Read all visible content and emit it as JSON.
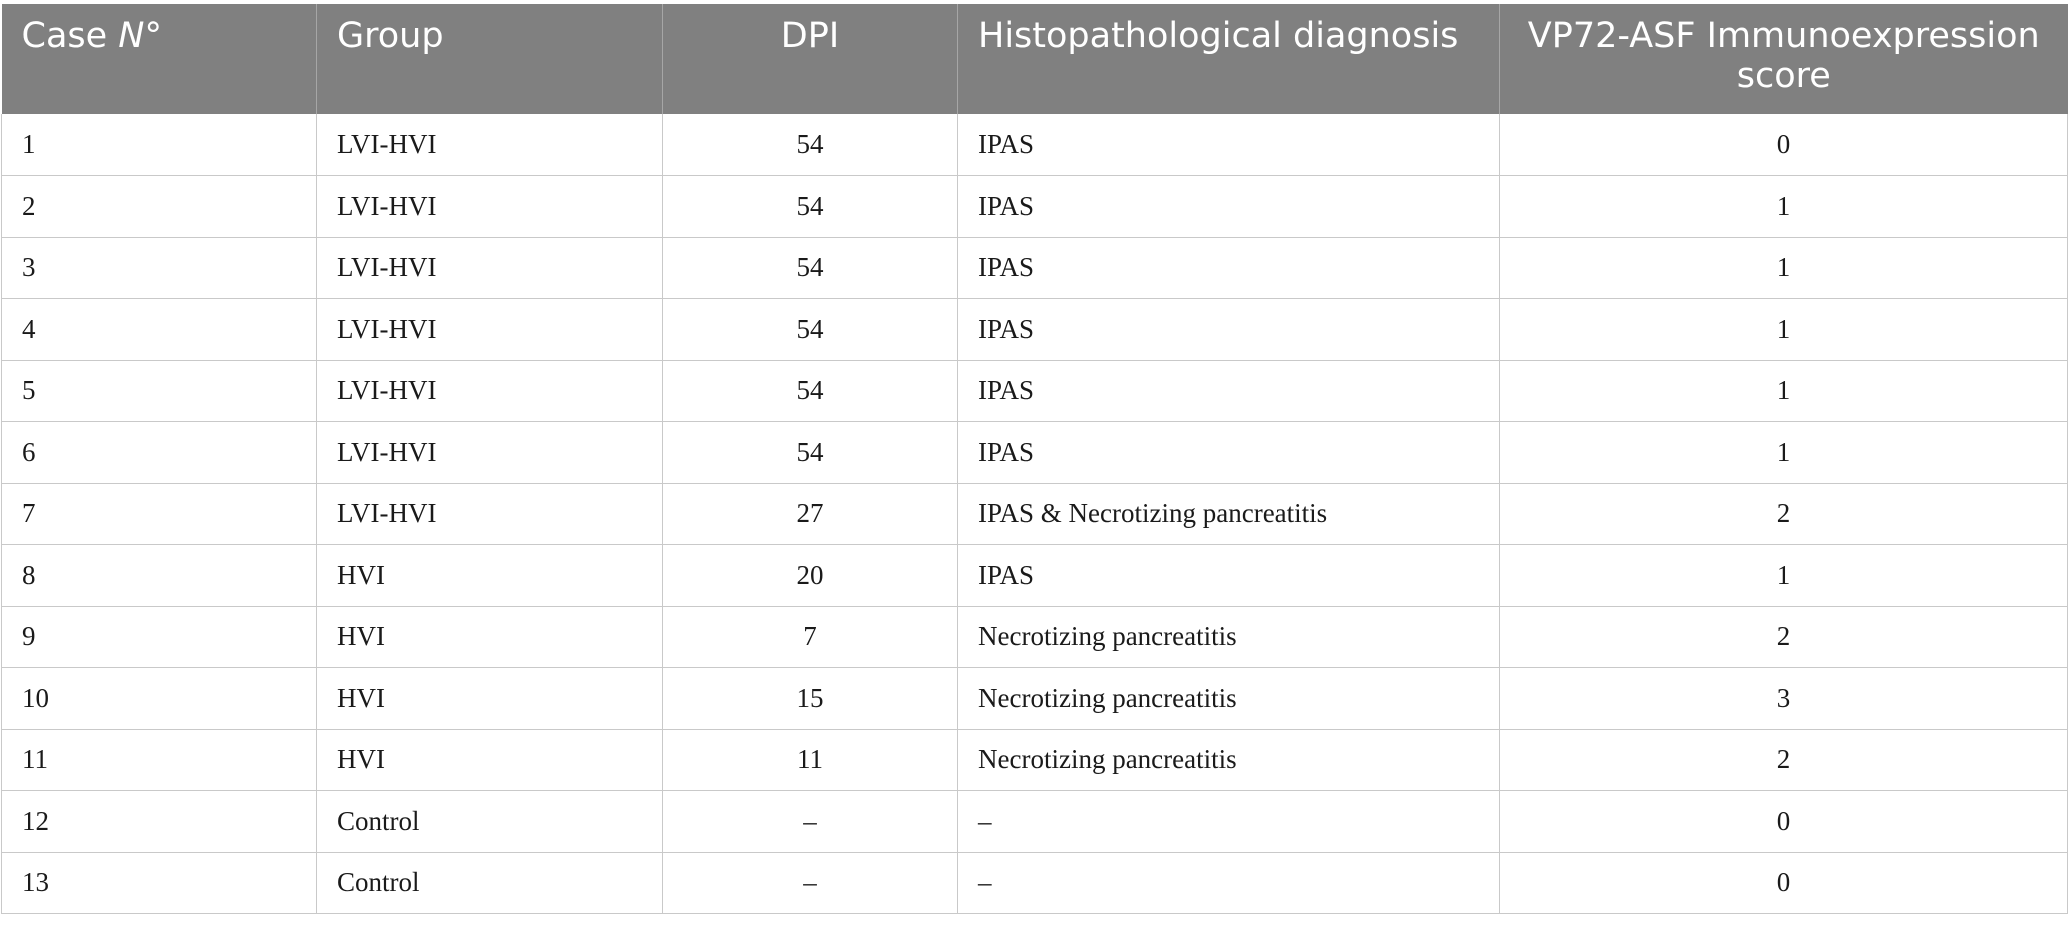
{
  "table": {
    "headers": {
      "case_prefix": "Case ",
      "case_n": "N°",
      "group": "Group",
      "dpi": "DPI",
      "diagnosis": "Histopathological diagnosis",
      "score": "VP72-ASF Immunoexpression score"
    },
    "rows": [
      {
        "case": "1",
        "group": "LVI-HVI",
        "dpi": "54",
        "diagnosis": "IPAS",
        "score": "0"
      },
      {
        "case": "2",
        "group": "LVI-HVI",
        "dpi": "54",
        "diagnosis": "IPAS",
        "score": "1"
      },
      {
        "case": "3",
        "group": "LVI-HVI",
        "dpi": "54",
        "diagnosis": "IPAS",
        "score": "1"
      },
      {
        "case": "4",
        "group": "LVI-HVI",
        "dpi": "54",
        "diagnosis": "IPAS",
        "score": "1"
      },
      {
        "case": "5",
        "group": "LVI-HVI",
        "dpi": "54",
        "diagnosis": "IPAS",
        "score": "1"
      },
      {
        "case": "6",
        "group": "LVI-HVI",
        "dpi": "54",
        "diagnosis": "IPAS",
        "score": "1"
      },
      {
        "case": "7",
        "group": "LVI-HVI",
        "dpi": "27",
        "diagnosis": "IPAS & Necrotizing pancreatitis",
        "score": "2"
      },
      {
        "case": "8",
        "group": "HVI",
        "dpi": "20",
        "diagnosis": "IPAS",
        "score": "1"
      },
      {
        "case": "9",
        "group": "HVI",
        "dpi": "7",
        "diagnosis": "Necrotizing pancreatitis",
        "score": "2"
      },
      {
        "case": "10",
        "group": "HVI",
        "dpi": "15",
        "diagnosis": "Necrotizing pancreatitis",
        "score": "3"
      },
      {
        "case": "11",
        "group": "HVI",
        "dpi": "11",
        "diagnosis": "Necrotizing pancreatitis",
        "score": "2"
      },
      {
        "case": "12",
        "group": "Control",
        "dpi": "–",
        "diagnosis": "–",
        "score": "0"
      },
      {
        "case": "13",
        "group": "Control",
        "dpi": "–",
        "diagnosis": "–",
        "score": "0"
      }
    ]
  }
}
